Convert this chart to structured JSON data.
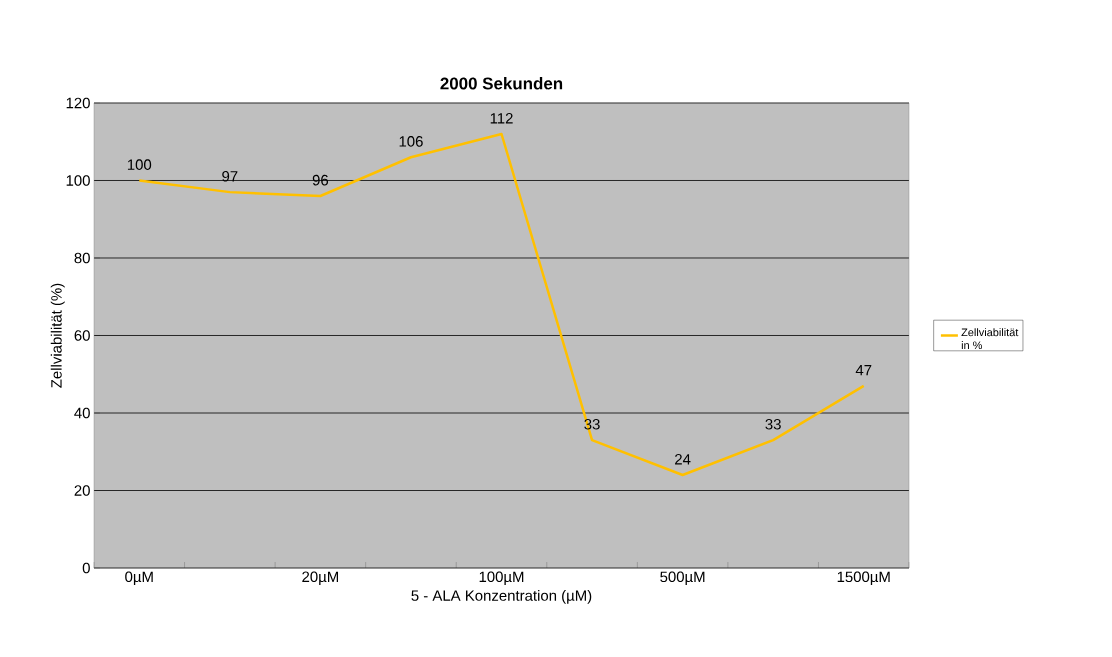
{
  "chart_data": {
    "type": "line",
    "title": "2000 Sekunden",
    "xlabel": "5  - ALA Konzentration (µM)",
    "ylabel": "Zellviabilität (%)",
    "categories": [
      "0µM",
      null,
      "20µM",
      null,
      "100µM",
      null,
      "500µM",
      null,
      "1500µM"
    ],
    "series": [
      {
        "name": "Zellviabilität in %",
        "color": "#ffc000",
        "values": [
          100,
          97,
          96,
          106,
          112,
          33,
          24,
          33,
          47
        ]
      }
    ],
    "ylim": [
      0,
      120
    ],
    "yticks": [
      0,
      20,
      40,
      60,
      80,
      100,
      120
    ],
    "grid": "y",
    "legend": "right",
    "data_labels": true
  }
}
